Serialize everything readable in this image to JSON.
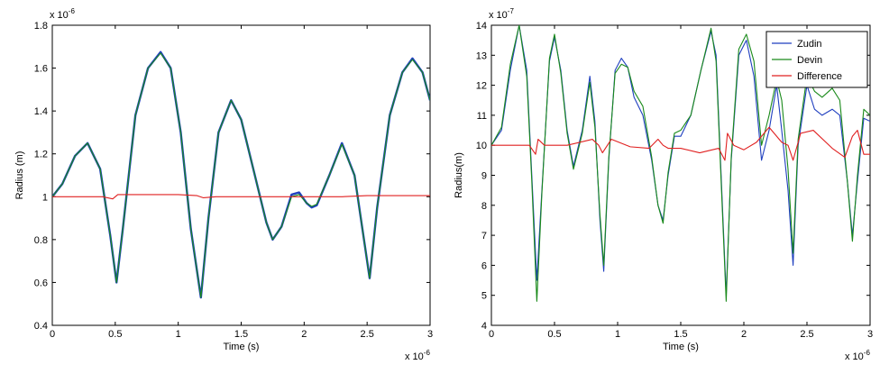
{
  "chart_data": [
    {
      "type": "line",
      "xlabel": "Time (s)",
      "ylabel": "Radius (m)",
      "xlim": [
        0,
        3
      ],
      "ylim": [
        0.4,
        1.8
      ],
      "x_multiplier": {
        "base": "x 10",
        "exp": "-6"
      },
      "y_multiplier": {
        "base": "x 10",
        "exp": "-6"
      },
      "xticks": [
        "0",
        "0.5",
        "1",
        "1.5",
        "2",
        "2.5",
        "3"
      ],
      "yticks": [
        "0.4",
        "0.6",
        "0.8",
        "1",
        "1.2",
        "1.4",
        "1.6",
        "1.8"
      ],
      "grid": false,
      "legend": null,
      "series": [
        {
          "color": "#1f3fbf",
          "width": 2.4,
          "x": [
            0,
            0.08,
            0.18,
            0.28,
            0.38,
            0.46,
            0.51,
            0.56,
            0.66,
            0.76,
            0.86,
            0.94,
            1.02,
            1.1,
            1.18,
            1.24,
            1.32,
            1.42,
            1.5,
            1.6,
            1.7,
            1.75,
            1.82,
            1.9,
            1.96,
            2.02,
            2.06,
            2.1,
            2.2,
            2.3,
            2.4,
            2.48,
            2.52,
            2.58,
            2.68,
            2.78,
            2.86,
            2.94,
            3.0
          ],
          "y": [
            1.0,
            1.06,
            1.19,
            1.25,
            1.13,
            0.82,
            0.6,
            0.85,
            1.38,
            1.6,
            1.675,
            1.6,
            1.3,
            0.85,
            0.53,
            0.9,
            1.3,
            1.45,
            1.36,
            1.12,
            0.88,
            0.8,
            0.86,
            1.01,
            1.02,
            0.97,
            0.95,
            0.96,
            1.1,
            1.25,
            1.1,
            0.78,
            0.62,
            0.95,
            1.38,
            1.58,
            1.645,
            1.58,
            1.45
          ]
        },
        {
          "color": "#1a8a1a",
          "width": 1.1,
          "x": [
            0,
            0.08,
            0.18,
            0.28,
            0.38,
            0.46,
            0.51,
            0.56,
            0.66,
            0.76,
            0.86,
            0.94,
            1.02,
            1.1,
            1.18,
            1.24,
            1.32,
            1.42,
            1.5,
            1.6,
            1.7,
            1.75,
            1.82,
            1.9,
            1.96,
            2.02,
            2.06,
            2.1,
            2.2,
            2.3,
            2.4,
            2.48,
            2.52,
            2.58,
            2.68,
            2.78,
            2.86,
            2.94,
            3.0
          ],
          "y": [
            1.0,
            1.06,
            1.19,
            1.25,
            1.13,
            0.82,
            0.6,
            0.85,
            1.38,
            1.6,
            1.67,
            1.6,
            1.3,
            0.85,
            0.53,
            0.9,
            1.3,
            1.45,
            1.36,
            1.12,
            0.88,
            0.8,
            0.86,
            1.0,
            1.01,
            0.97,
            0.955,
            0.965,
            1.1,
            1.245,
            1.1,
            0.78,
            0.62,
            0.95,
            1.38,
            1.58,
            1.64,
            1.58,
            1.45
          ]
        },
        {
          "color": "#e02020",
          "width": 1.1,
          "x": [
            0,
            0.4,
            0.48,
            0.52,
            0.6,
            0.8,
            1.0,
            1.15,
            1.2,
            1.3,
            1.5,
            1.7,
            1.9,
            2.1,
            2.3,
            2.5,
            2.7,
            2.9,
            3.0
          ],
          "y": [
            1.0,
            1.0,
            0.99,
            1.01,
            1.01,
            1.01,
            1.01,
            1.005,
            0.995,
            1.0,
            1.0,
            1.0,
            1.0,
            1.0,
            1.0,
            1.005,
            1.005,
            1.005,
            1.005
          ]
        }
      ]
    },
    {
      "type": "line",
      "xlabel": "Time (s)",
      "ylabel": "Radius(m)",
      "xlim": [
        0,
        3
      ],
      "ylim": [
        4,
        14
      ],
      "x_multiplier": {
        "base": "x 10",
        "exp": "-6"
      },
      "y_multiplier": {
        "base": "x 10",
        "exp": "-7"
      },
      "xticks": [
        "0",
        "0.5",
        "1",
        "1.5",
        "2",
        "2.5",
        "3"
      ],
      "yticks": [
        "4",
        "5",
        "6",
        "7",
        "8",
        "9",
        "10",
        "11",
        "12",
        "13",
        "14"
      ],
      "grid": false,
      "legend": {
        "position": "top-right",
        "entries": [
          "Zudin",
          "Devin",
          "Difference"
        ]
      },
      "series": [
        {
          "name": "Zudin",
          "color": "#1f3fbf",
          "width": 1.1,
          "x": [
            0,
            0.08,
            0.15,
            0.22,
            0.28,
            0.32,
            0.36,
            0.4,
            0.46,
            0.5,
            0.55,
            0.6,
            0.65,
            0.72,
            0.78,
            0.82,
            0.86,
            0.89,
            0.93,
            0.98,
            1.03,
            1.08,
            1.13,
            1.2,
            1.27,
            1.32,
            1.36,
            1.4,
            1.45,
            1.5,
            1.58,
            1.66,
            1.74,
            1.78,
            1.82,
            1.86,
            1.9,
            1.96,
            2.02,
            2.08,
            2.14,
            2.2,
            2.26,
            2.3,
            2.35,
            2.39,
            2.43,
            2.5,
            2.56,
            2.62,
            2.7,
            2.76,
            2.82,
            2.86,
            2.9,
            2.95,
            3.0
          ],
          "y": [
            10.0,
            10.5,
            12.5,
            14.0,
            12.5,
            9.0,
            5.5,
            8.5,
            12.8,
            13.6,
            12.5,
            10.5,
            9.3,
            10.5,
            12.3,
            10.8,
            7.5,
            5.8,
            9.5,
            12.5,
            12.9,
            12.6,
            11.6,
            11.0,
            9.5,
            8.0,
            7.5,
            9.0,
            10.3,
            10.3,
            11.0,
            12.5,
            13.8,
            13.0,
            9.0,
            5.0,
            9.5,
            13.0,
            13.5,
            12.3,
            9.5,
            10.5,
            12.0,
            10.5,
            8.5,
            6.0,
            10.0,
            12.0,
            11.2,
            11.0,
            11.2,
            11.0,
            8.8,
            7.0,
            8.8,
            10.9,
            10.8
          ]
        },
        {
          "name": "Devin",
          "color": "#1a8a1a",
          "width": 1.1,
          "x": [
            0,
            0.08,
            0.15,
            0.22,
            0.28,
            0.32,
            0.36,
            0.4,
            0.46,
            0.5,
            0.55,
            0.6,
            0.65,
            0.72,
            0.78,
            0.82,
            0.86,
            0.89,
            0.93,
            0.98,
            1.03,
            1.08,
            1.13,
            1.2,
            1.27,
            1.32,
            1.36,
            1.4,
            1.45,
            1.5,
            1.58,
            1.66,
            1.74,
            1.78,
            1.82,
            1.86,
            1.9,
            1.96,
            2.02,
            2.08,
            2.14,
            2.2,
            2.26,
            2.3,
            2.35,
            2.39,
            2.43,
            2.5,
            2.56,
            2.62,
            2.7,
            2.76,
            2.82,
            2.86,
            2.9,
            2.95,
            3.0
          ],
          "y": [
            10.0,
            10.6,
            12.7,
            14.0,
            12.3,
            8.8,
            4.8,
            8.4,
            12.9,
            13.7,
            12.4,
            10.4,
            9.2,
            10.4,
            12.1,
            10.6,
            7.7,
            6.0,
            9.6,
            12.4,
            12.7,
            12.6,
            11.8,
            11.3,
            9.6,
            8.0,
            7.4,
            9.1,
            10.4,
            10.5,
            11.0,
            12.5,
            13.9,
            12.8,
            8.8,
            4.8,
            9.6,
            13.2,
            13.7,
            12.8,
            10.0,
            11.0,
            12.2,
            11.5,
            9.2,
            6.4,
            10.2,
            12.3,
            11.8,
            11.6,
            11.9,
            11.5,
            8.8,
            6.8,
            9.0,
            11.2,
            11.0
          ]
        },
        {
          "name": "Difference",
          "color": "#e02020",
          "width": 1.1,
          "x": [
            0,
            0.3,
            0.35,
            0.37,
            0.42,
            0.6,
            0.8,
            0.85,
            0.88,
            0.95,
            1.1,
            1.25,
            1.32,
            1.36,
            1.4,
            1.5,
            1.65,
            1.8,
            1.85,
            1.87,
            1.92,
            2.0,
            2.1,
            2.2,
            2.3,
            2.35,
            2.39,
            2.45,
            2.55,
            2.7,
            2.8,
            2.86,
            2.9,
            2.95,
            3.0
          ],
          "y": [
            10.0,
            10.0,
            9.7,
            10.2,
            10.0,
            10.0,
            10.2,
            10.0,
            9.75,
            10.2,
            9.95,
            9.9,
            10.2,
            10.0,
            9.9,
            9.9,
            9.75,
            9.9,
            9.5,
            10.4,
            10.0,
            9.85,
            10.1,
            10.6,
            10.1,
            10.0,
            9.5,
            10.4,
            10.5,
            9.9,
            9.6,
            10.3,
            10.5,
            9.7,
            9.7
          ]
        }
      ]
    }
  ]
}
